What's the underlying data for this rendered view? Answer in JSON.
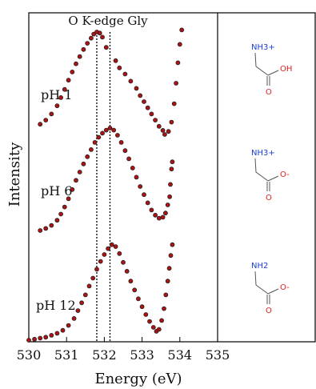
{
  "chart_data": {
    "type": "scatter",
    "title": "O K-edge Gly",
    "xlabel": "Energy (eV)",
    "ylabel": "Intensity",
    "xlim": [
      530,
      535.5
    ],
    "x_ticks": [
      "530",
      "531",
      "532",
      "533",
      "534",
      "535"
    ],
    "y_ticks": [],
    "grid": false,
    "reference_lines_x": [
      531.8,
      532.15
    ],
    "colors": {
      "marker_fill": "#b01212",
      "marker_edge": "#222222"
    },
    "series": [
      {
        "name": "pH 1",
        "points": [
          [
            530.3,
            0.1
          ],
          [
            530.45,
            0.14
          ],
          [
            530.6,
            0.2
          ],
          [
            530.75,
            0.28
          ],
          [
            530.85,
            0.36
          ],
          [
            530.95,
            0.44
          ],
          [
            531.05,
            0.53
          ],
          [
            531.15,
            0.61
          ],
          [
            531.25,
            0.69
          ],
          [
            531.35,
            0.76
          ],
          [
            531.45,
            0.83
          ],
          [
            531.55,
            0.89
          ],
          [
            531.65,
            0.94
          ],
          [
            531.72,
            0.98
          ],
          [
            531.8,
            1.0
          ],
          [
            531.88,
            0.99
          ],
          [
            531.95,
            0.95
          ],
          [
            532.05,
            0.85
          ],
          [
            532.3,
            0.72
          ],
          [
            532.4,
            0.65
          ],
          [
            532.55,
            0.59
          ],
          [
            532.7,
            0.52
          ],
          [
            532.85,
            0.45
          ],
          [
            532.95,
            0.38
          ],
          [
            533.05,
            0.32
          ],
          [
            533.15,
            0.26
          ],
          [
            533.25,
            0.2
          ],
          [
            533.35,
            0.14
          ],
          [
            533.45,
            0.08
          ],
          [
            533.55,
            0.04
          ],
          [
            533.6,
            0.0
          ],
          [
            533.7,
            0.03
          ],
          [
            533.78,
            0.12
          ],
          [
            533.85,
            0.3
          ],
          [
            533.9,
            0.5
          ],
          [
            533.95,
            0.7
          ],
          [
            534.0,
            0.88
          ],
          [
            534.05,
            1.02
          ]
        ]
      },
      {
        "name": "pH 6",
        "points": [
          [
            530.3,
            0.0
          ],
          [
            530.45,
            0.02
          ],
          [
            530.6,
            0.05
          ],
          [
            530.75,
            0.1
          ],
          [
            530.85,
            0.16
          ],
          [
            530.95,
            0.23
          ],
          [
            531.05,
            0.31
          ],
          [
            531.15,
            0.4
          ],
          [
            531.25,
            0.49
          ],
          [
            531.35,
            0.57
          ],
          [
            531.45,
            0.65
          ],
          [
            531.55,
            0.72
          ],
          [
            531.65,
            0.79
          ],
          [
            531.75,
            0.86
          ],
          [
            531.85,
            0.91
          ],
          [
            531.95,
            0.95
          ],
          [
            532.05,
            0.98
          ],
          [
            532.15,
            1.0
          ],
          [
            532.25,
            0.98
          ],
          [
            532.35,
            0.93
          ],
          [
            532.45,
            0.86
          ],
          [
            532.55,
            0.78
          ],
          [
            532.65,
            0.7
          ],
          [
            532.75,
            0.61
          ],
          [
            532.85,
            0.52
          ],
          [
            532.95,
            0.43
          ],
          [
            533.05,
            0.35
          ],
          [
            533.15,
            0.27
          ],
          [
            533.25,
            0.2
          ],
          [
            533.35,
            0.15
          ],
          [
            533.45,
            0.12
          ],
          [
            533.55,
            0.13
          ],
          [
            533.62,
            0.17
          ],
          [
            533.68,
            0.25
          ],
          [
            533.73,
            0.33
          ],
          [
            533.75,
            0.45
          ],
          [
            533.78,
            0.6
          ],
          [
            533.8,
            0.67
          ]
        ]
      },
      {
        "name": "pH 12",
        "points": [
          [
            530.0,
            0.0
          ],
          [
            530.15,
            0.01
          ],
          [
            530.3,
            0.02
          ],
          [
            530.45,
            0.03
          ],
          [
            530.6,
            0.05
          ],
          [
            530.75,
            0.07
          ],
          [
            530.9,
            0.1
          ],
          [
            531.05,
            0.15
          ],
          [
            531.2,
            0.22
          ],
          [
            531.3,
            0.3
          ],
          [
            531.4,
            0.38
          ],
          [
            531.5,
            0.46
          ],
          [
            531.6,
            0.55
          ],
          [
            531.7,
            0.63
          ],
          [
            531.8,
            0.72
          ],
          [
            531.9,
            0.8
          ],
          [
            532.0,
            0.87
          ],
          [
            532.1,
            0.93
          ],
          [
            532.2,
            0.97
          ],
          [
            532.3,
            0.95
          ],
          [
            532.4,
            0.88
          ],
          [
            532.5,
            0.79
          ],
          [
            532.6,
            0.7
          ],
          [
            532.7,
            0.6
          ],
          [
            532.8,
            0.51
          ],
          [
            532.9,
            0.42
          ],
          [
            533.0,
            0.34
          ],
          [
            533.1,
            0.26
          ],
          [
            533.2,
            0.19
          ],
          [
            533.3,
            0.13
          ],
          [
            533.38,
            0.09
          ],
          [
            533.45,
            0.11
          ],
          [
            533.52,
            0.2
          ],
          [
            533.58,
            0.32
          ],
          [
            533.63,
            0.46
          ],
          [
            533.68,
            0.6
          ],
          [
            533.72,
            0.73
          ],
          [
            533.76,
            0.86
          ],
          [
            533.8,
            0.97
          ]
        ]
      }
    ],
    "structures": [
      {
        "amine": "NH3+",
        "acid": "OH",
        "oxygen": "O"
      },
      {
        "amine": "NH3+",
        "acid": "O-",
        "oxygen": "O"
      },
      {
        "amine": "NH2",
        "acid": "O-",
        "oxygen": "O"
      }
    ]
  }
}
